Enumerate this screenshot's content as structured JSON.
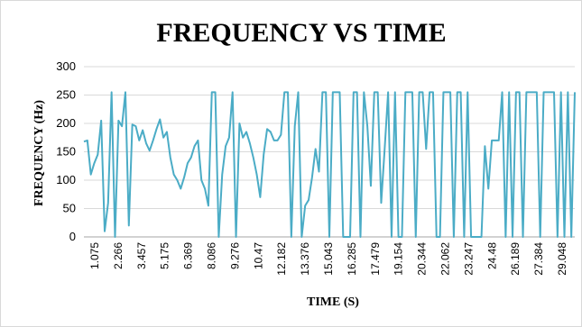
{
  "chart_data": {
    "type": "line",
    "title": "FREQUENCY VS TIME",
    "xlabel": "TIME  (S)",
    "ylabel": "FREQUENCY (Hz)",
    "ylim": [
      0,
      300
    ],
    "yticks": [
      0,
      50,
      100,
      150,
      200,
      250,
      300
    ],
    "grid": true,
    "legend": "none",
    "color": "#4BACC6",
    "x_tick_labels": [
      "1.075",
      "2.266",
      "3.457",
      "5.175",
      "6.369",
      "8.086",
      "9.276",
      "10.47",
      "12.182",
      "13.376",
      "15.043",
      "16.285",
      "17.479",
      "19.154",
      "20.344",
      "22.062",
      "23.247",
      "24.48",
      "26.189",
      "27.384",
      "29.048"
    ],
    "series": [
      {
        "values": [
          168,
          170,
          110,
          130,
          145,
          205,
          10,
          60,
          255,
          0,
          205,
          195,
          255,
          20,
          198,
          195,
          170,
          188,
          165,
          152,
          170,
          190,
          207,
          175,
          185,
          140,
          110,
          100,
          85,
          105,
          130,
          140,
          160,
          170,
          100,
          85,
          55,
          255,
          255,
          0,
          110,
          160,
          175,
          255,
          0,
          200,
          175,
          185,
          165,
          140,
          110,
          70,
          145,
          190,
          185,
          170,
          170,
          180,
          255,
          255,
          0,
          195,
          255,
          0,
          55,
          65,
          105,
          155,
          115,
          255,
          255,
          0,
          255,
          255,
          255,
          0,
          0,
          0,
          255,
          255,
          0,
          255,
          195,
          90,
          255,
          255,
          60,
          155,
          255,
          0,
          255,
          0,
          0,
          255,
          255,
          255,
          0,
          255,
          255,
          155,
          255,
          255,
          0,
          0,
          255,
          255,
          255,
          0,
          255,
          255,
          0,
          255,
          0,
          0,
          0,
          0,
          160,
          85,
          170,
          170,
          170,
          255,
          0,
          255,
          0,
          255,
          255,
          0,
          255,
          255,
          255,
          255,
          0,
          255,
          255,
          255,
          255,
          0,
          255,
          0,
          255,
          0,
          255
        ]
      }
    ]
  }
}
